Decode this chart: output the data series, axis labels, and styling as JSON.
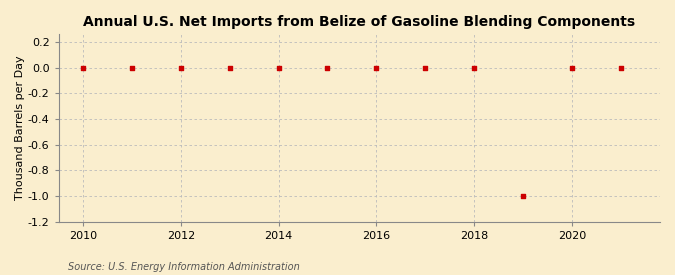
{
  "title": "Annual U.S. Net Imports from Belize of Gasoline Blending Components",
  "ylabel": "Thousand Barrels per Day",
  "source": "Source: U.S. Energy Information Administration",
  "years": [
    2010,
    2011,
    2012,
    2013,
    2014,
    2015,
    2016,
    2017,
    2018,
    2019,
    2020,
    2021
  ],
  "values": [
    0,
    0,
    0,
    0,
    0,
    0,
    0,
    0,
    0,
    -1.0,
    0,
    0
  ],
  "xlim": [
    2009.5,
    2021.8
  ],
  "ylim": [
    -1.2,
    0.26
  ],
  "yticks": [
    0.2,
    0.0,
    -0.2,
    -0.4,
    -0.6,
    -0.8,
    -1.0,
    -1.2
  ],
  "xticks": [
    2010,
    2012,
    2014,
    2016,
    2018,
    2020
  ],
  "marker_color": "#cc0000",
  "marker": "s",
  "marker_size": 3.5,
  "grid_color": "#bbbbbb",
  "bg_color": "#faeece",
  "outer_bg": "#faeece",
  "title_fontsize": 10,
  "label_fontsize": 8,
  "tick_fontsize": 8,
  "source_fontsize": 7
}
